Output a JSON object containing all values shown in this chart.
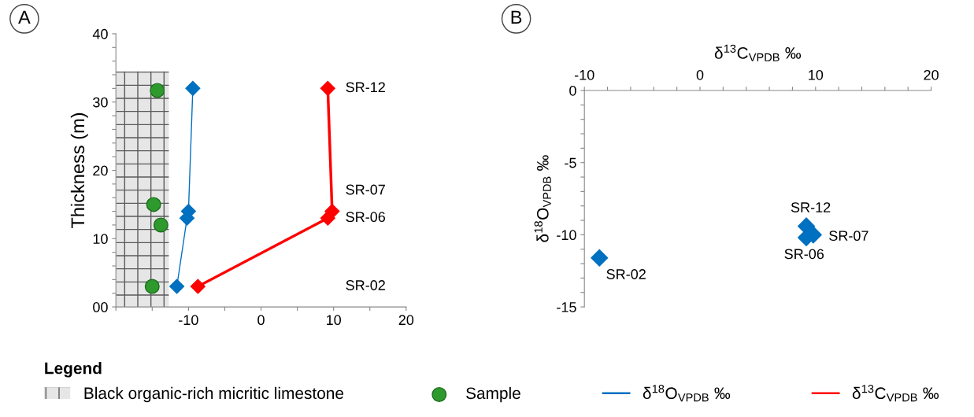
{
  "chart_data": [
    {
      "type": "line",
      "ylabel": "Thickness (m)",
      "annotations": [
        "A",
        "SR-12",
        "SR-07",
        "SR-06",
        "SR-02"
      ],
      "xlim": [
        -20,
        20
      ],
      "xticks": [
        {
          "value": -20,
          "label": null
        },
        {
          "value": -15,
          "label": null
        },
        -10,
        {
          "value": -5,
          "label": null
        },
        0,
        {
          "value": 5,
          "label": null
        },
        10,
        {
          "value": 15,
          "label": null
        },
        20
      ],
      "ylim": [
        0,
        40
      ],
      "yticks": [
        {
          "value": 0,
          "label": "00"
        },
        {
          "value": 2,
          "label": null
        },
        {
          "value": 4,
          "label": null
        },
        {
          "value": 6,
          "label": null
        },
        {
          "value": 8,
          "label": null
        },
        10,
        {
          "value": 12,
          "label": null
        },
        {
          "value": 14,
          "label": null
        },
        {
          "value": 16,
          "label": null
        },
        {
          "value": 18,
          "label": null
        },
        20,
        {
          "value": 22,
          "label": null
        },
        {
          "value": 24,
          "label": null
        },
        {
          "value": 26,
          "label": null
        },
        {
          "value": 28,
          "label": null
        },
        30,
        {
          "value": 32,
          "label": null
        },
        {
          "value": 34,
          "label": null
        },
        {
          "value": 36,
          "label": null
        },
        {
          "value": 38,
          "label": null
        },
        40
      ],
      "grid": false,
      "legend": "bottom",
      "legend_title": "Legend",
      "series": [
        {
          "name": "Black organic-rich micritic limestone",
          "type": "area",
          "color": "#e6e6e6",
          "x": [
            -20,
            -12.7
          ],
          "values": [
            34.5,
            34.5
          ]
        },
        {
          "name": "Sample",
          "type": "scatter",
          "marker": "circle",
          "color": "#2e9a2e",
          "x": [
            -14.3,
            -14.8,
            -13.8,
            -15
          ],
          "values": [
            31.7,
            15,
            12,
            3
          ]
        },
        {
          "name": "δ$^{18}$O$_{VPDB}$ ‰",
          "type": "line",
          "marker": "diamond",
          "color": "#0070c0",
          "x": [
            -9.4,
            -10,
            -10.2,
            -11.6
          ],
          "values": [
            32,
            14,
            13,
            3
          ]
        },
        {
          "name": "δ$^{13}$C$_{VPDB}$ ‰",
          "type": "line",
          "marker": "diamond",
          "color": "#ff0000",
          "x": [
            9.2,
            9.8,
            9.2,
            -8.7
          ],
          "values": [
            32,
            14,
            13,
            3
          ]
        }
      ]
    },
    {
      "type": "scatter",
      "xlabel": "δ$^{13}$C$_{VPDB}$ ‰",
      "ylabel": "δ$^{18}$O$_{VPDB}$ ‰",
      "marker": "diamond",
      "grid": false,
      "annotations": [
        "B",
        {
          "text": "SR-12",
          "x": 9.2,
          "y": -9.4
        },
        {
          "text": "SR-07",
          "x": 9.8,
          "y": -10
        },
        {
          "text": "SR-06",
          "x": 9.2,
          "y": -10.2
        },
        {
          "text": "SR-02",
          "x": -8.7,
          "y": -11.6
        }
      ],
      "xlim": [
        -10,
        20
      ],
      "xticks": [
        -10,
        {
          "value": -8,
          "label": null
        },
        {
          "value": -6,
          "label": null
        },
        {
          "value": -4,
          "label": null
        },
        {
          "value": -2,
          "label": null
        },
        0,
        {
          "value": 2,
          "label": null
        },
        {
          "value": 4,
          "label": null
        },
        {
          "value": 6,
          "label": null
        },
        {
          "value": 8,
          "label": null
        },
        10,
        {
          "value": 12,
          "label": null
        },
        {
          "value": 14,
          "label": null
        },
        {
          "value": 16,
          "label": null
        },
        {
          "value": 18,
          "label": null
        },
        20
      ],
      "ylim": [
        -15,
        0
      ],
      "yticks": [
        -15,
        {
          "value": -14,
          "label": null
        },
        {
          "value": -13,
          "label": null
        },
        {
          "value": -12,
          "label": null
        },
        {
          "value": -11,
          "label": null
        },
        -10,
        {
          "value": -9,
          "label": null
        },
        {
          "value": -8,
          "label": null
        },
        {
          "value": -7,
          "label": null
        },
        {
          "value": -6,
          "label": null
        },
        -5,
        {
          "value": -4,
          "label": null
        },
        {
          "value": -3,
          "label": null
        },
        {
          "value": -2,
          "label": null
        },
        {
          "value": -1,
          "label": null
        },
        0
      ],
      "series": [
        {
          "color": "#0070c0",
          "x": [
            9.2,
            9.8,
            9.2,
            -8.7
          ],
          "values": [
            -9.4,
            -10,
            -10.2,
            -11.6
          ]
        }
      ]
    }
  ]
}
